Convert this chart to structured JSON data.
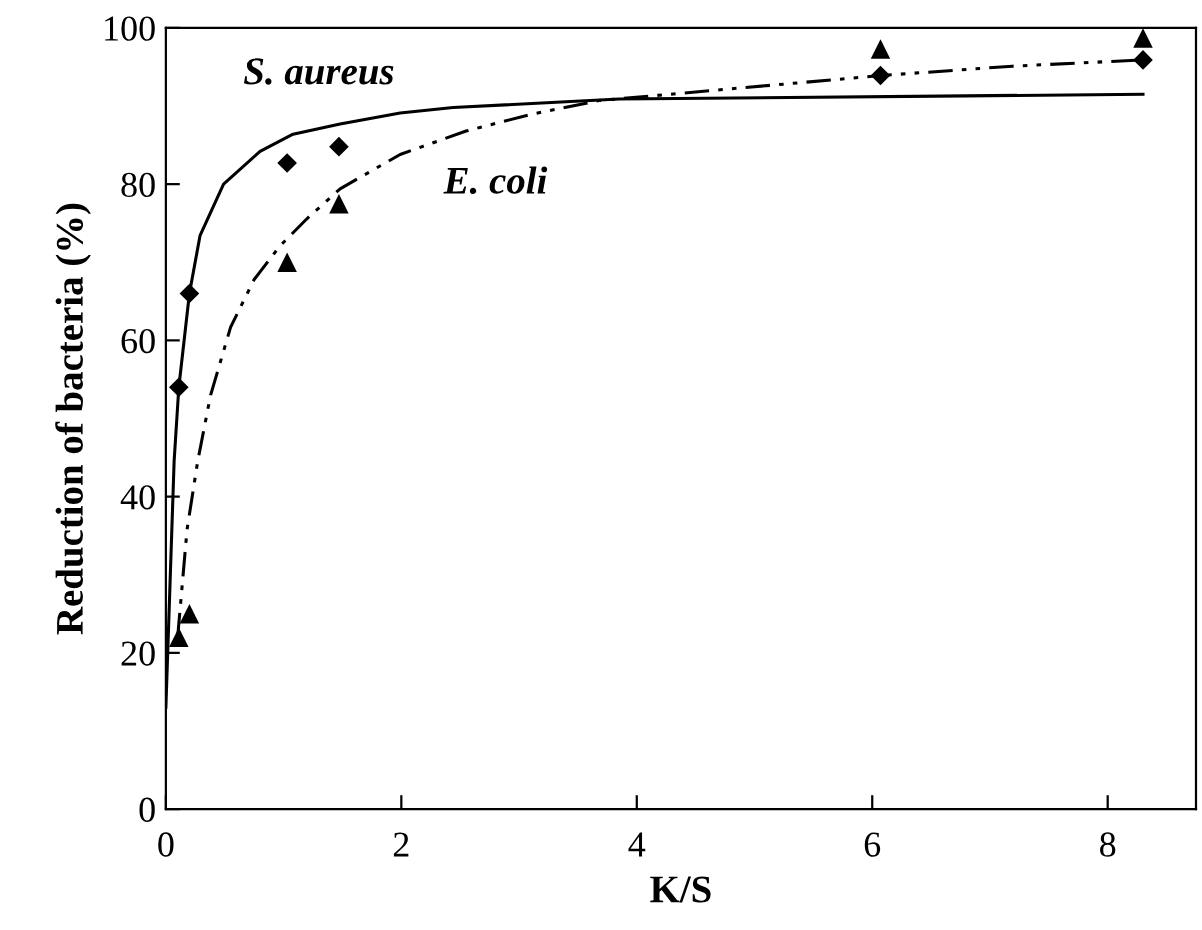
{
  "chart_data": {
    "type": "scatter",
    "xlabel": "K/S",
    "ylabel": "Reduction of bacteria (%)",
    "xlim": [
      0,
      8.75
    ],
    "ylim": [
      0,
      100
    ],
    "xticks": [
      0,
      2,
      4,
      6,
      8
    ],
    "yticks": [
      0,
      20,
      40,
      60,
      80,
      100
    ],
    "grid": false,
    "legend": false,
    "series": [
      {
        "type": "line",
        "name": "S. aureus",
        "color": "#000000",
        "line_style": "solid",
        "marker": "none",
        "x": [
          0,
          0.07,
          0.11,
          0.2,
          0.29,
          0.49,
          0.8,
          1.08,
          1.48,
          1.99,
          2.44,
          3.85,
          6.79,
          8.3
        ],
        "values": [
          13,
          44.5,
          54,
          66,
          73.4,
          80,
          84.2,
          86.4,
          87.7,
          89.1,
          89.8,
          90.9,
          91.3,
          91.5
        ]
      },
      {
        "type": "line",
        "name": "E. coli",
        "color": "#000000",
        "line_style": "dashdot",
        "marker": "none",
        "x": [
          0.1,
          0.18,
          0.27,
          0.38,
          0.55,
          0.75,
          0.97,
          1.2,
          1.48,
          1.99,
          2.55,
          3.12,
          3.68,
          6.07,
          7.19,
          8.3
        ],
        "values": [
          22,
          35.8,
          44.5,
          53,
          61.7,
          67.8,
          72.1,
          75.6,
          79.4,
          83.8,
          86.8,
          89,
          90.7,
          93.9,
          95.1,
          95.9
        ]
      },
      {
        "color": "#000000",
        "marker": "diamond",
        "x": [
          0.11,
          0.2,
          1.03,
          1.47,
          6.07,
          8.3
        ],
        "values": [
          54,
          66,
          82.7,
          84.8,
          93.9,
          95.9
        ]
      },
      {
        "color": "#000000",
        "marker": "triangle",
        "x": [
          0.11,
          0.2,
          1.03,
          1.47,
          6.07,
          8.3
        ],
        "values": [
          22,
          25,
          70,
          77.5,
          97.3,
          98.7
        ]
      }
    ]
  }
}
